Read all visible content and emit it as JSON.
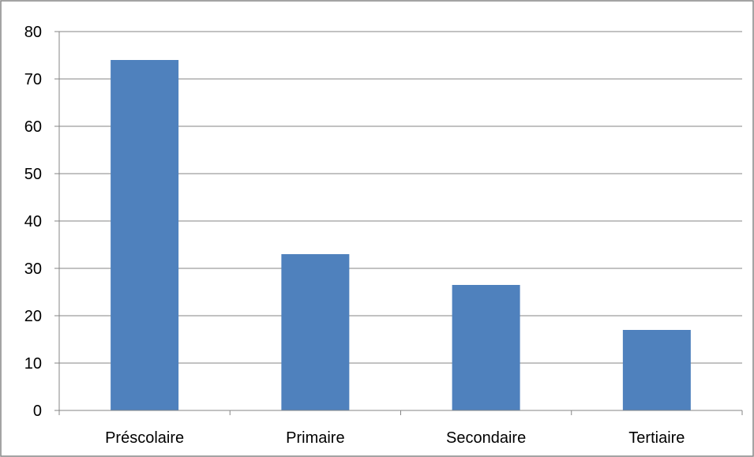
{
  "chart_data": {
    "type": "bar",
    "title": "",
    "xlabel": "",
    "ylabel": "",
    "categories": [
      "Préscolaire",
      "Primaire",
      "Secondaire",
      "Tertiaire"
    ],
    "values": [
      74,
      33,
      26.5,
      17
    ],
    "ylim": [
      0,
      80
    ],
    "yticks": [
      0,
      10,
      20,
      30,
      40,
      50,
      60,
      70,
      80
    ],
    "grid": true,
    "legend": "none",
    "bar_color": "#4F81BD",
    "gridline_color": "#868686"
  }
}
